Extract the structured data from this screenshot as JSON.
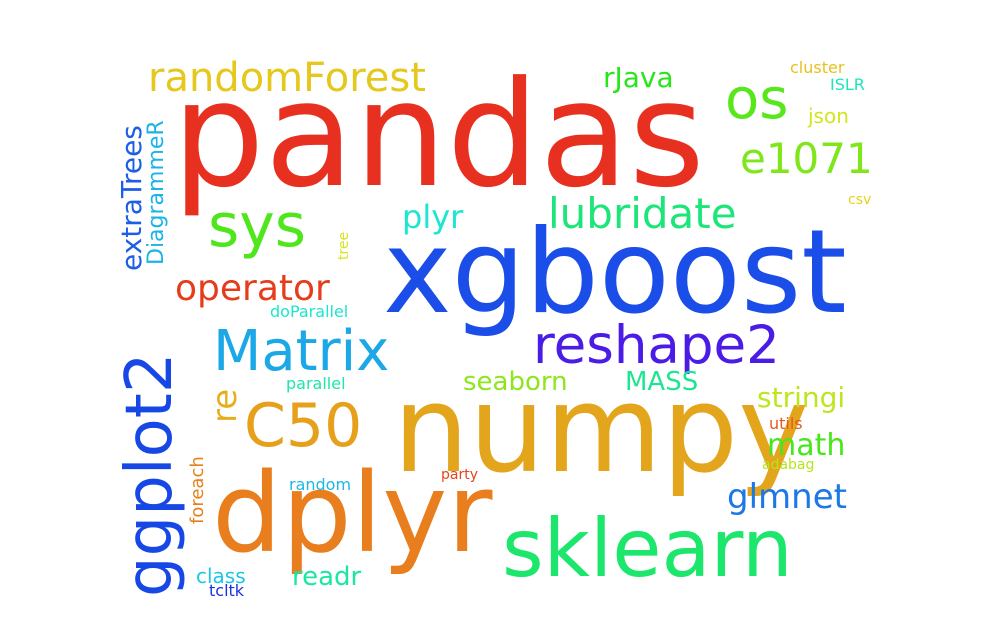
{
  "words": [
    {
      "text": "pandas",
      "color": "#e83020"
    },
    {
      "text": "xgboost",
      "color": "#1b4ee8"
    },
    {
      "text": "numpy",
      "color": "#e3a51c"
    },
    {
      "text": "dplyr",
      "color": "#e87e1e"
    },
    {
      "text": "sklearn",
      "color": "#1ce66c"
    },
    {
      "text": "ggplot2",
      "color": "#1748e6"
    },
    {
      "text": "randomForest",
      "color": "#e6c81c"
    },
    {
      "text": "Matrix",
      "color": "#1ca8e6"
    },
    {
      "text": "reshape2",
      "color": "#4a1ce6"
    },
    {
      "text": "sys",
      "color": "#4fe61c"
    },
    {
      "text": "C50",
      "color": "#e6a01c"
    },
    {
      "text": "lubridate",
      "color": "#1ce67a"
    },
    {
      "text": "os",
      "color": "#58e61c"
    },
    {
      "text": "e1071",
      "color": "#7fe61c"
    },
    {
      "text": "operator",
      "color": "#e63c1c"
    },
    {
      "text": "extraTrees",
      "color": "#1c5ee6"
    },
    {
      "text": "plyr",
      "color": "#1ce6d2"
    },
    {
      "text": "rJava",
      "color": "#28e61c"
    },
    {
      "text": "glmnet",
      "color": "#1c78e6"
    },
    {
      "text": "math",
      "color": "#48e61c"
    },
    {
      "text": "stringi",
      "color": "#bee61c"
    },
    {
      "text": "seaborn",
      "color": "#8ee61c"
    },
    {
      "text": "MASS",
      "color": "#1ce690"
    },
    {
      "text": "re",
      "color": "#e6ae1c"
    },
    {
      "text": "DiagrammeR",
      "color": "#1cb4e6"
    },
    {
      "text": "readr",
      "color": "#1ce6a4"
    },
    {
      "text": "foreach",
      "color": "#e6801c"
    },
    {
      "text": "class",
      "color": "#1cc6e6"
    },
    {
      "text": "json",
      "color": "#d2e61c"
    },
    {
      "text": "cluster",
      "color": "#e6c21c"
    },
    {
      "text": "ISLR",
      "color": "#1ce6ba"
    },
    {
      "text": "csv",
      "color": "#e6d21c"
    },
    {
      "text": "utils",
      "color": "#e65a1c"
    },
    {
      "text": "adabag",
      "color": "#b4e61c"
    },
    {
      "text": "parallel",
      "color": "#1ce6a8"
    },
    {
      "text": "doParallel",
      "color": "#1ce6cc"
    },
    {
      "text": "random",
      "color": "#1cb8e6"
    },
    {
      "text": "party",
      "color": "#e6441c"
    },
    {
      "text": "tree",
      "color": "#d6e61c"
    },
    {
      "text": "tcltk",
      "color": "#1c30e6"
    }
  ]
}
